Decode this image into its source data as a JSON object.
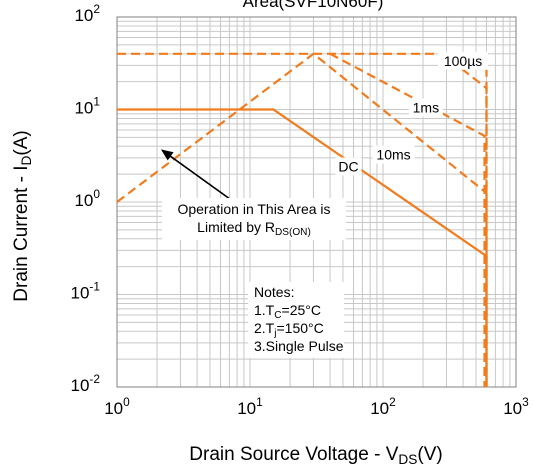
{
  "chart_data": {
    "type": "line",
    "title_partial": "Area(SVF10N60F)",
    "xlabel": {
      "main": "Drain Source Voltage - V",
      "sub": "DS",
      "tail": "(V)"
    },
    "ylabel": {
      "main": "Drain Current - I",
      "sub": "D",
      "tail": "(A)"
    },
    "xscale": "log",
    "yscale": "log",
    "xlim": [
      1,
      1000
    ],
    "ylim": [
      0.01,
      100
    ],
    "grid": true,
    "xticks": [
      {
        "value": 1,
        "base": "10",
        "exp": "0"
      },
      {
        "value": 10,
        "base": "10",
        "exp": "1"
      },
      {
        "value": 100,
        "base": "10",
        "exp": "2"
      },
      {
        "value": 1000,
        "base": "10",
        "exp": "3"
      }
    ],
    "yticks": [
      {
        "value": 0.01,
        "base": "10",
        "exp": "-2"
      },
      {
        "value": 0.1,
        "base": "10",
        "exp": "-1"
      },
      {
        "value": 1,
        "base": "10",
        "exp": "0"
      },
      {
        "value": 10,
        "base": "10",
        "exp": "1"
      },
      {
        "value": 100,
        "base": "10",
        "exp": "2"
      }
    ],
    "series": [
      {
        "label": "DC",
        "style": "solid",
        "color": "#f07c1e",
        "x": [
          1,
          15,
          600,
          600
        ],
        "y": [
          10,
          10,
          0.26,
          0.01
        ]
      },
      {
        "label": "10ms",
        "style": "dashed",
        "color": "#f07c1e",
        "x": [
          1,
          30,
          600,
          600
        ],
        "y": [
          1,
          40,
          1.25,
          0.01
        ]
      },
      {
        "label": "1ms",
        "style": "dashed",
        "color": "#f07c1e",
        "x": [
          40,
          580,
          580
        ],
        "y": [
          40,
          5.2,
          0.01
        ]
      },
      {
        "label": "100µs",
        "style": "dashed",
        "color": "#f07c1e",
        "x": [
          1,
          280,
          600,
          600
        ],
        "y": [
          40,
          40,
          17,
          0.01
        ]
      },
      {
        "label": "",
        "style": "dashed",
        "color": "#f07c1e",
        "x": [
          600,
          600
        ],
        "y": [
          40,
          0.01
        ]
      }
    ],
    "series_labels": [
      {
        "text": "100µs",
        "x": 400,
        "y": 32
      },
      {
        "text": "1ms",
        "x": 210,
        "y": 10
      },
      {
        "text": "10ms",
        "x": 120,
        "y": 3.1
      },
      {
        "text": "DC",
        "x": 55,
        "y": 2.3
      }
    ],
    "annotation": {
      "line1": "Operation in This Area is",
      "line2_main": "Limited by R",
      "line2_sub": "DS(ON)",
      "arrow_from": [
        9.2,
        0.82
      ],
      "arrow_to": [
        2.2,
        3.6
      ]
    },
    "notes": {
      "title": "Notes:",
      "line1_main": "1.T",
      "line1_sub": "C",
      "line1_tail": "=25°C",
      "line2_main": "2.T",
      "line2_sub": "j",
      "line2_tail": "=150°C",
      "line3": "3.Single Pulse"
    },
    "colors": {
      "curve": "#f07c1e",
      "grid": "#c8c8c8",
      "axis": "#808080"
    }
  }
}
